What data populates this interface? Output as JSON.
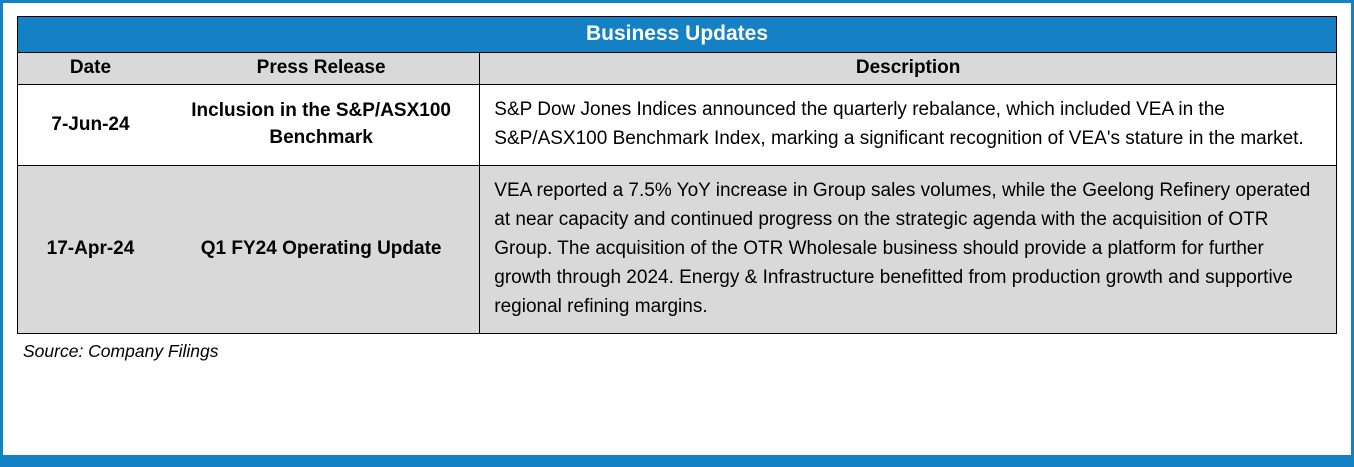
{
  "title": "Business Updates",
  "colors": {
    "accent_blue": "#1581C5",
    "header_gray": "#D9D9D9",
    "alt_row_gray": "#D9D9D9",
    "border_black": "#000000"
  },
  "table": {
    "columns": [
      "Date",
      "Press Release",
      "Description"
    ],
    "rows": [
      {
        "date": "7-Jun-24",
        "press_release": "Inclusion in the S&P/ASX100 Benchmark",
        "description": "S&P Dow Jones Indices announced the quarterly rebalance, which included VEA in the S&P/ASX100 Benchmark Index, marking a significant recognition of VEA's stature in the market."
      },
      {
        "date": "17-Apr-24",
        "press_release": "Q1 FY24 Operating Update",
        "description": "VEA reported a 7.5% YoY increase in Group sales volumes, while the Geelong Refinery operated at near capacity and continued progress on the strategic agenda with the acquisition of OTR Group. The acquisition of the OTR Wholesale business should provide a platform for further growth through 2024. Energy & Infrastructure benefitted from production growth and supportive regional refining margins."
      }
    ]
  },
  "source": "Source: Company Filings"
}
